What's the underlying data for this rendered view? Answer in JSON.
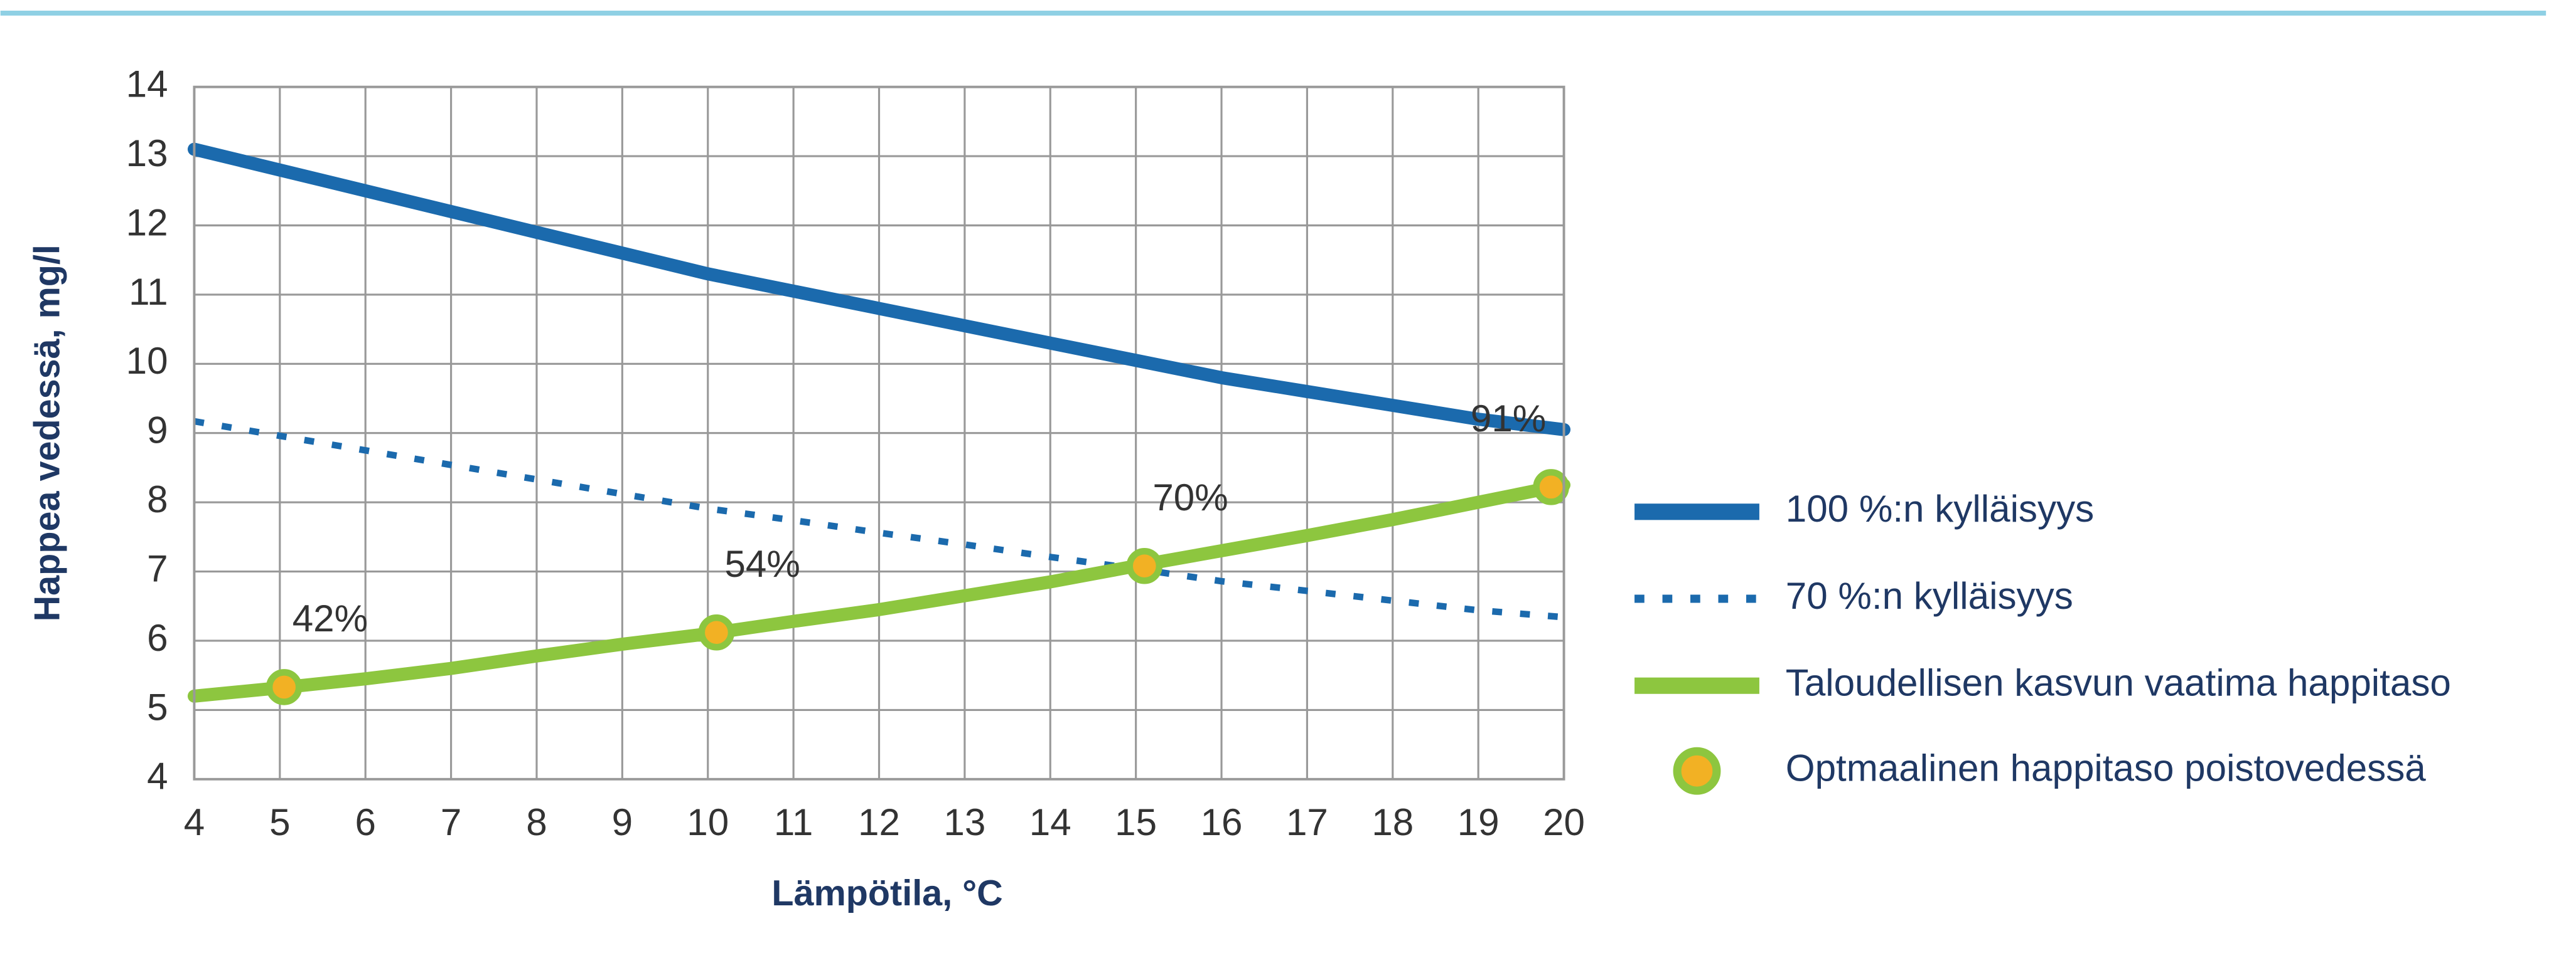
{
  "chart_data": {
    "type": "line",
    "xlabel": "Lämpötila, °C",
    "ylabel": "Happea vedessä, mg/l",
    "x": [
      4,
      5,
      6,
      7,
      8,
      9,
      10,
      11,
      12,
      13,
      14,
      15,
      16,
      17,
      18,
      19,
      20
    ],
    "series": [
      {
        "name": "100 %:n kylläisyys",
        "color": "#1b6aad",
        "style": "solid",
        "values": [
          13.1,
          12.8,
          12.5,
          12.2,
          11.9,
          11.6,
          11.3,
          11.05,
          10.8,
          10.55,
          10.3,
          10.05,
          9.8,
          9.6,
          9.4,
          9.2,
          9.05
        ]
      },
      {
        "name": "70 %:n kylläisyys",
        "color": "#1b6aad",
        "style": "dotted",
        "values": [
          9.17,
          8.96,
          8.75,
          8.54,
          8.33,
          8.12,
          7.91,
          7.74,
          7.56,
          7.39,
          7.21,
          7.04,
          6.86,
          6.72,
          6.58,
          6.44,
          6.34
        ]
      },
      {
        "name": "Taloudellisen kasvun vaatima happitaso",
        "color": "#8dc63f",
        "style": "solid",
        "values": [
          5.2,
          5.32,
          5.45,
          5.6,
          5.78,
          5.95,
          6.1,
          6.28,
          6.45,
          6.65,
          6.85,
          7.08,
          7.3,
          7.52,
          7.75,
          8.0,
          8.25
        ]
      }
    ],
    "points": {
      "name": "Optmaalinen happitaso poistovedessä",
      "color": "#f2b124",
      "edge": "#8dc63f",
      "x": [
        5.05,
        10.1,
        15.1,
        19.85
      ],
      "values": [
        5.33,
        6.12,
        7.08,
        8.22
      ],
      "labels": [
        "42%",
        "54%",
        "70%",
        "91%"
      ]
    },
    "xlim": [
      4,
      20
    ],
    "xticks": [
      4,
      5,
      6,
      7,
      8,
      9,
      10,
      11,
      12,
      13,
      14,
      15,
      16,
      17,
      18,
      19,
      20
    ],
    "ylim": [
      4,
      14
    ],
    "yticks": [
      4,
      5,
      6,
      7,
      8,
      9,
      10,
      11,
      12,
      13,
      14
    ],
    "grid": true
  }
}
